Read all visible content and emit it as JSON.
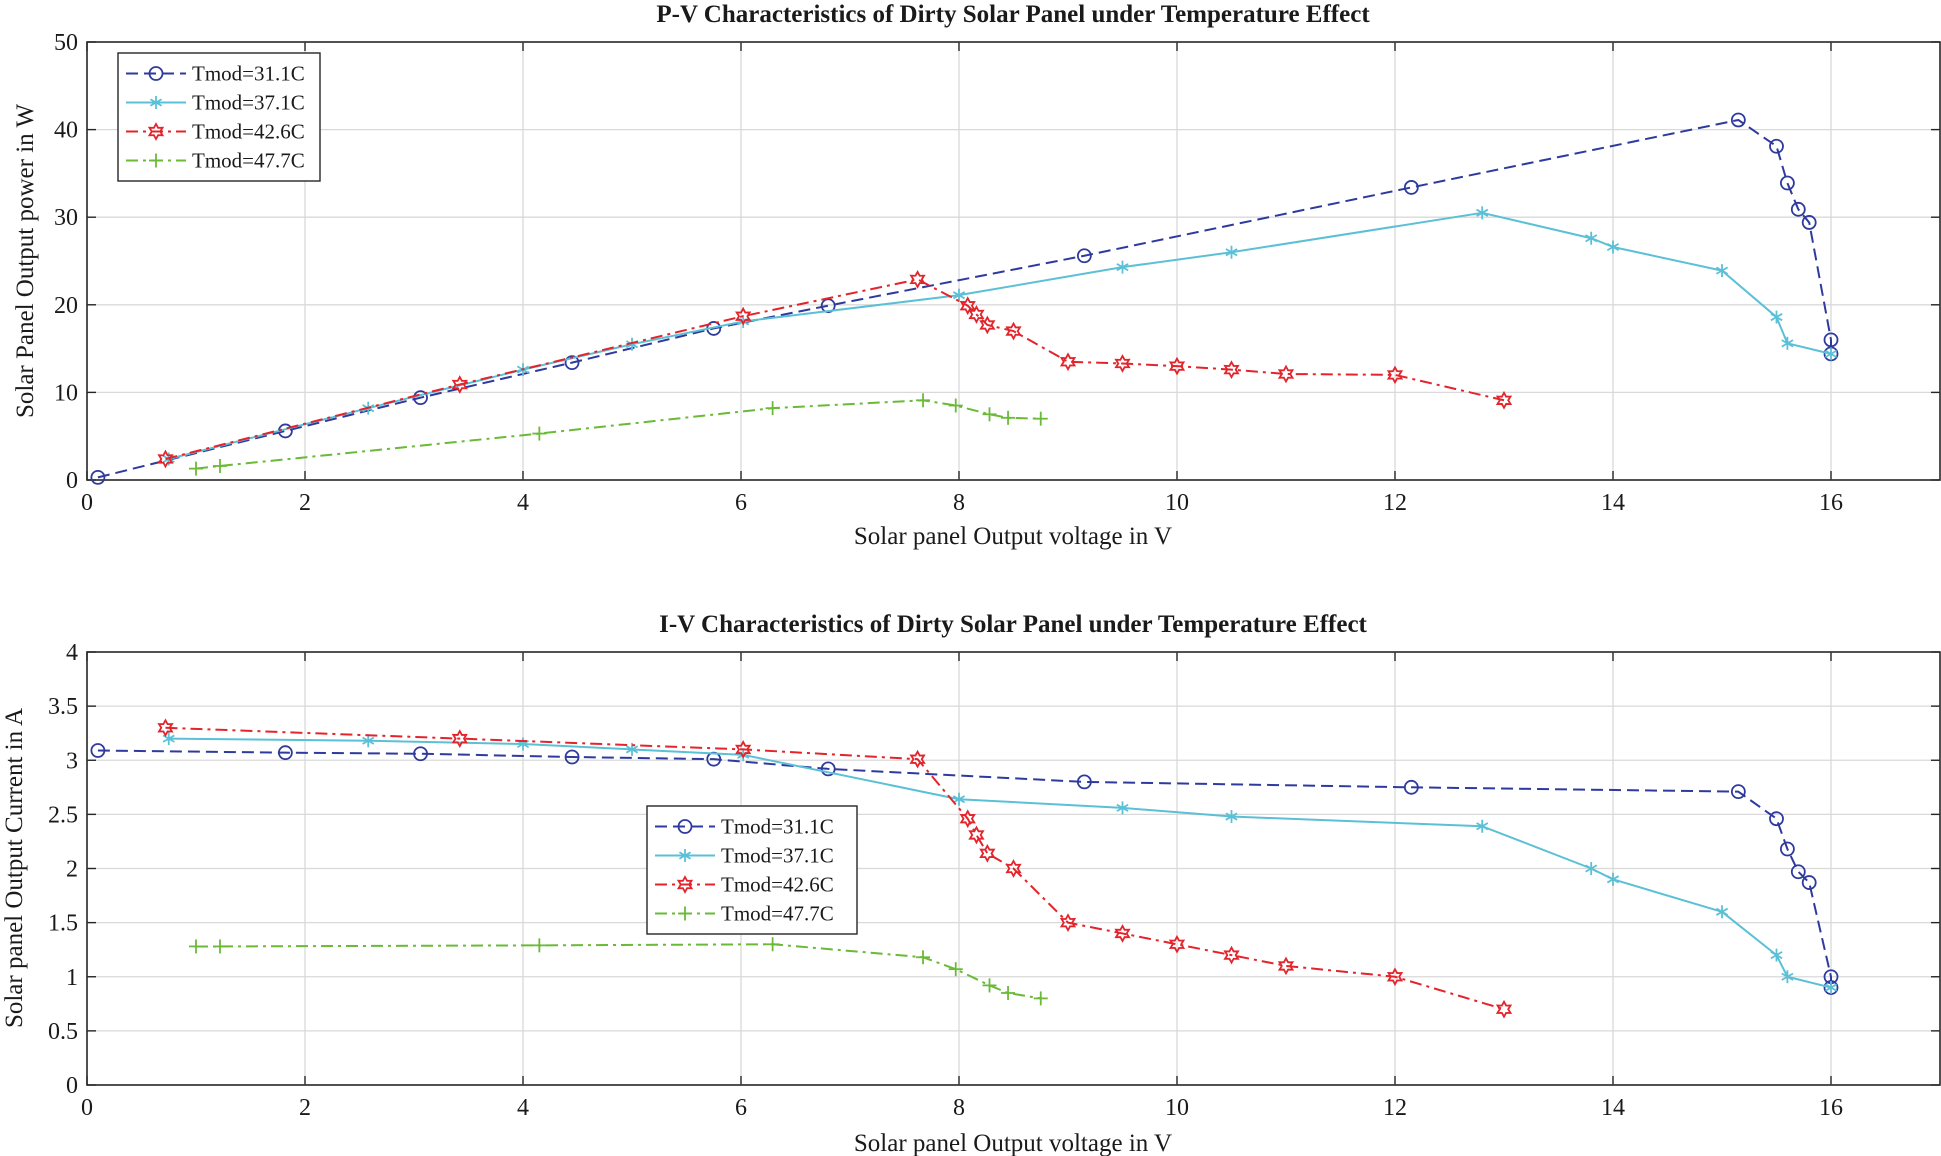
{
  "chart_data": [
    {
      "type": "line",
      "title": "P-V Characteristics of Dirty Solar Panel under Temperature Effect",
      "xlabel": "Solar panel Output voltage in V",
      "ylabel": "Solar Panel Output power in W",
      "xlim": [
        0,
        17
      ],
      "ylim": [
        0,
        50
      ],
      "xticks": [
        0,
        2,
        4,
        6,
        8,
        10,
        12,
        14,
        16
      ],
      "yticks": [
        0,
        10,
        20,
        30,
        40,
        50
      ],
      "grid": true,
      "legend_position": "top-left",
      "series": [
        {
          "name": "Tmod=31.1C",
          "color": "#2e3a9e",
          "dash": "dashed",
          "marker": "circle",
          "x": [
            0.1,
            1.82,
            3.06,
            4.45,
            5.75,
            6.8,
            9.15,
            12.15,
            15.15,
            15.5,
            15.6,
            15.7,
            15.8,
            16.0,
            16.0
          ],
          "y": [
            0.3,
            5.6,
            9.4,
            13.4,
            17.3,
            19.9,
            25.6,
            33.4,
            41.1,
            38.1,
            33.9,
            30.9,
            29.4,
            16.0,
            14.4
          ]
        },
        {
          "name": "Tmod=37.1C",
          "color": "#5bc0d6",
          "dash": "solid",
          "marker": "asterisk",
          "x": [
            0.75,
            2.58,
            4.0,
            5.0,
            6.02,
            8.0,
            9.5,
            10.5,
            12.8,
            13.8,
            14.0,
            15.0,
            15.5,
            15.6,
            16.0
          ],
          "y": [
            2.4,
            8.2,
            12.6,
            15.5,
            18.1,
            21.1,
            24.3,
            26.0,
            30.5,
            27.6,
            26.6,
            23.9,
            18.6,
            15.6,
            14.4
          ]
        },
        {
          "name": "Tmod=42.6C",
          "color": "#e3242b",
          "dash": "dashdot",
          "marker": "hexagram",
          "x": [
            0.72,
            3.42,
            6.02,
            7.62,
            8.08,
            8.16,
            8.26,
            8.5,
            9.0,
            9.5,
            10.0,
            10.5,
            11.0,
            12.0,
            13.0
          ],
          "y": [
            2.4,
            10.9,
            18.7,
            22.9,
            19.9,
            18.9,
            17.7,
            17.0,
            13.5,
            13.3,
            13.0,
            12.6,
            12.1,
            12.0,
            9.1
          ]
        },
        {
          "name": "Tmod=47.7C",
          "color": "#6aba37",
          "dash": "dashdot",
          "marker": "plus",
          "x": [
            1.0,
            1.22,
            4.15,
            6.29,
            7.67,
            7.97,
            8.28,
            8.45,
            8.75
          ],
          "y": [
            1.3,
            1.6,
            5.3,
            8.2,
            9.1,
            8.5,
            7.5,
            7.1,
            7.0
          ]
        }
      ]
    },
    {
      "type": "line",
      "title": "I-V Characteristics of Dirty Solar Panel under Temperature Effect",
      "xlabel": "Solar panel Output voltage in V",
      "ylabel": "Solar panel Output Current in A",
      "xlim": [
        0,
        17
      ],
      "ylim": [
        0,
        4
      ],
      "xticks": [
        0,
        2,
        4,
        6,
        8,
        10,
        12,
        14,
        16
      ],
      "yticks": [
        0,
        0.5,
        1,
        1.5,
        2,
        2.5,
        3,
        3.5,
        4
      ],
      "grid": true,
      "legend_position": "center-left",
      "series": [
        {
          "name": "Tmod=31.1C",
          "color": "#2e3a9e",
          "dash": "dashed",
          "marker": "circle",
          "x": [
            0.1,
            1.82,
            3.06,
            4.45,
            5.75,
            6.8,
            9.15,
            12.15,
            15.15,
            15.5,
            15.6,
            15.7,
            15.8,
            16.0,
            16.0
          ],
          "y": [
            3.09,
            3.07,
            3.06,
            3.03,
            3.01,
            2.92,
            2.8,
            2.75,
            2.71,
            2.46,
            2.18,
            1.97,
            1.87,
            1.0,
            0.9
          ]
        },
        {
          "name": "Tmod=37.1C",
          "color": "#5bc0d6",
          "dash": "solid",
          "marker": "asterisk",
          "x": [
            0.75,
            2.58,
            4.0,
            5.0,
            6.02,
            8.0,
            9.5,
            10.5,
            12.8,
            13.8,
            14.0,
            15.0,
            15.5,
            15.6,
            16.0
          ],
          "y": [
            3.2,
            3.18,
            3.15,
            3.1,
            3.05,
            2.64,
            2.56,
            2.48,
            2.39,
            2.0,
            1.9,
            1.6,
            1.2,
            1.0,
            0.9
          ]
        },
        {
          "name": "Tmod=42.6C",
          "color": "#e3242b",
          "dash": "dashdot",
          "marker": "hexagram",
          "x": [
            0.72,
            3.42,
            6.02,
            7.62,
            8.08,
            8.16,
            8.26,
            8.5,
            9.0,
            9.5,
            10.0,
            10.5,
            11.0,
            12.0,
            13.0
          ],
          "y": [
            3.3,
            3.2,
            3.1,
            3.01,
            2.46,
            2.31,
            2.14,
            2.0,
            1.5,
            1.4,
            1.3,
            1.2,
            1.1,
            1.0,
            0.7
          ]
        },
        {
          "name": "Tmod=47.7C",
          "color": "#6aba37",
          "dash": "dashdot",
          "marker": "plus",
          "x": [
            1.0,
            1.22,
            4.15,
            6.29,
            7.67,
            7.97,
            8.28,
            8.45,
            8.75
          ],
          "y": [
            1.28,
            1.28,
            1.29,
            1.3,
            1.18,
            1.07,
            0.92,
            0.85,
            0.8
          ]
        }
      ]
    }
  ]
}
